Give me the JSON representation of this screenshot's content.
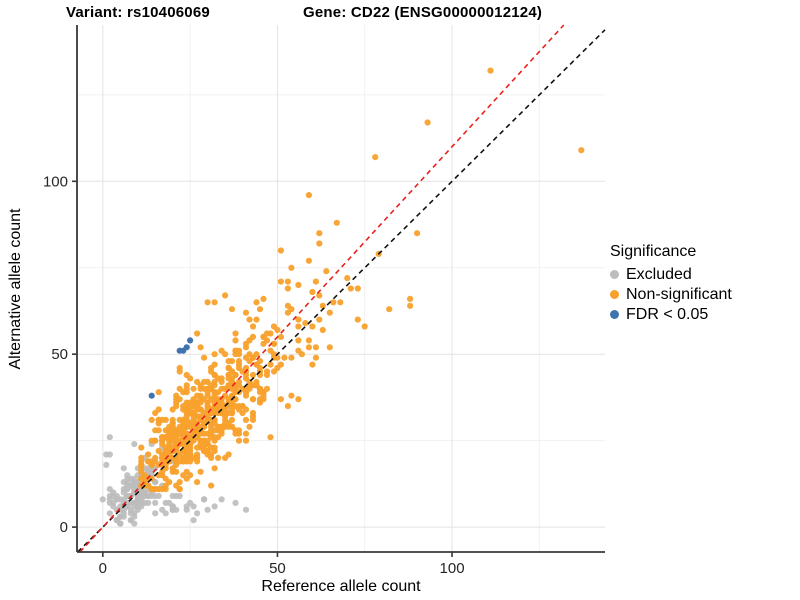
{
  "title": {
    "left": "Variant: rs10406069",
    "right": "Gene: CD22 (ENSG00000012124)"
  },
  "axes": {
    "x_label": "Reference allele count",
    "y_label": "Alternative allele count"
  },
  "legend": {
    "title": "Significance",
    "items": [
      {
        "label": "Excluded",
        "color": "#BCBCBC"
      },
      {
        "label": "Non-significant",
        "color": "#F8A12C"
      },
      {
        "label": "FDR < 0.05",
        "color": "#4174AE"
      }
    ]
  },
  "chart_data": {
    "type": "scatter",
    "title": "Variant: rs10406069 — Gene: CD22 (ENSG00000012124)",
    "xlabel": "Reference allele count",
    "ylabel": "Alternative allele count",
    "xlim": [
      -7.4,
      143.8
    ],
    "ylim": [
      -7.2,
      145.2
    ],
    "x_ticks": [
      0,
      50,
      100
    ],
    "y_ticks": [
      0,
      50,
      100
    ],
    "x_minor_ticks": [
      25,
      75,
      125
    ],
    "y_minor_ticks": [
      25,
      75,
      125
    ],
    "grid": "major+minor",
    "legend_position": "right",
    "point_radius": 3.1,
    "series": [
      {
        "name": "Excluded",
        "color": "#BCBCBC",
        "opacity": 0.9,
        "points": [
          [
            1,
            21
          ],
          [
            1,
            18
          ],
          [
            0,
            8
          ],
          [
            34,
            8
          ],
          [
            38,
            7
          ],
          [
            41,
            5
          ],
          [
            30,
            5
          ],
          [
            27,
            4
          ],
          [
            17,
            21
          ],
          [
            20,
            17
          ]
        ],
        "clusters": [
          {
            "seed": 5,
            "n": 150,
            "cx": 9.5,
            "cy": 10.5,
            "sdx": 3.8,
            "sdy": 4.3,
            "corr": 0.5,
            "xmin": 1,
            "xmax": 20,
            "ymin": 1,
            "ymax": 26
          },
          {
            "seed": 9,
            "n": 22,
            "cx": 23,
            "cy": 6,
            "sdx": 6,
            "sdy": 2,
            "corr": 0.2,
            "xmin": 12,
            "xmax": 42,
            "ymin": 2,
            "ymax": 10
          },
          {
            "seed": 13,
            "n": 10,
            "cx": 4,
            "cy": 16,
            "sdx": 2.5,
            "sdy": 5,
            "corr": 0.1,
            "xmin": 1,
            "xmax": 9,
            "ymin": 6,
            "ymax": 26
          }
        ]
      },
      {
        "name": "Non-significant",
        "color": "#F8A12C",
        "opacity": 0.95,
        "points": [
          [
            111,
            132
          ],
          [
            93,
            117
          ],
          [
            78,
            107
          ],
          [
            137,
            109
          ],
          [
            59,
            96
          ],
          [
            67,
            88
          ],
          [
            62,
            85
          ],
          [
            62,
            82
          ],
          [
            90,
            85
          ],
          [
            59,
            77
          ],
          [
            54,
            75
          ],
          [
            64,
            74
          ],
          [
            53,
            69
          ],
          [
            56,
            70
          ],
          [
            61,
            71
          ],
          [
            70,
            72
          ],
          [
            71,
            69
          ],
          [
            82,
            63
          ],
          [
            75,
            58
          ],
          [
            88,
            66
          ]
        ],
        "clusters": [
          {
            "seed": 11,
            "n": 430,
            "cx": 26,
            "cy": 28,
            "sdx": 7.5,
            "sdy": 8.5,
            "corr": 0.7,
            "xmin": 11,
            "xmax": 52,
            "ymin": 11,
            "ymax": 60
          },
          {
            "seed": 23,
            "n": 160,
            "cx": 37,
            "cy": 40,
            "sdx": 11,
            "sdy": 12,
            "corr": 0.65,
            "xmin": 12,
            "xmax": 78,
            "ymin": 12,
            "ymax": 82
          },
          {
            "seed": 37,
            "n": 45,
            "cx": 50,
            "cy": 55,
            "sdx": 13,
            "sdy": 15,
            "corr": 0.55,
            "xmin": 22,
            "xmax": 100,
            "ymin": 25,
            "ymax": 103
          }
        ]
      },
      {
        "name": "FDR < 0.05",
        "color": "#4174AE",
        "opacity": 1,
        "points": [
          [
            25,
            54
          ],
          [
            24,
            52
          ],
          [
            23,
            51
          ],
          [
            22,
            51
          ],
          [
            14,
            38
          ]
        ],
        "clusters": []
      }
    ],
    "reference_lines": [
      {
        "name": "identity-line",
        "slope": 1,
        "intercept": 0,
        "color": "#111111",
        "dash": "5 4"
      },
      {
        "name": "expected-ratio-line",
        "slope": 1.1,
        "intercept": 0,
        "color": "#E8211D",
        "dash": "5 4"
      }
    ]
  },
  "style_colors": {
    "grid_major": "#e3e3e3",
    "grid_minor": "#f1f1f1",
    "axis_line": "#383838",
    "tick_text": "#262626"
  }
}
